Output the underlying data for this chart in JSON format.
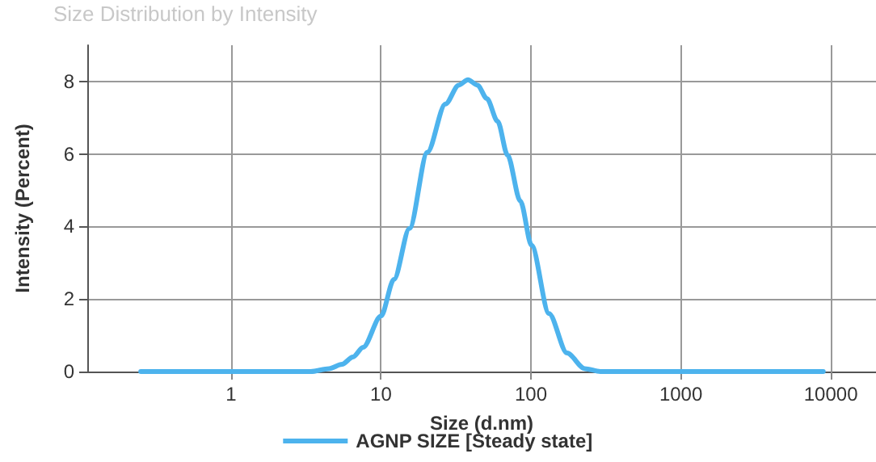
{
  "chart_data": {
    "type": "line",
    "title": "Size Distribution by Intensity",
    "xlabel": "Size (d.nm)",
    "ylabel": "Intensity (Percent)",
    "log": "x",
    "xlim": [
      0.11,
      20000
    ],
    "xticks": [
      1,
      10,
      100,
      1000,
      10000
    ],
    "ylim": [
      0,
      9
    ],
    "yticks": [
      0,
      2,
      4,
      6,
      8
    ],
    "grid": true,
    "legend": "bottom",
    "marker": "none",
    "line_style": "solid",
    "series": [
      {
        "name": "AGNP SIZE [Steady state]",
        "color": "#4db3ed",
        "x": [
          0.25,
          1,
          2,
          3.4,
          4.5,
          5.5,
          6.5,
          7.6,
          10,
          12.2,
          15.5,
          20.4,
          26.9,
          33,
          38,
          44,
          50.8,
          60,
          69.8,
          85,
          101,
          132,
          174,
          229,
          290,
          1000,
          8900
        ],
        "values": [
          0,
          0,
          0,
          0,
          0.08,
          0.2,
          0.4,
          0.67,
          1.53,
          2.54,
          3.95,
          6.05,
          7.38,
          7.9,
          8.05,
          7.9,
          7.53,
          6.9,
          5.97,
          4.7,
          3.48,
          1.6,
          0.51,
          0.08,
          0,
          0,
          0
        ]
      }
    ]
  }
}
